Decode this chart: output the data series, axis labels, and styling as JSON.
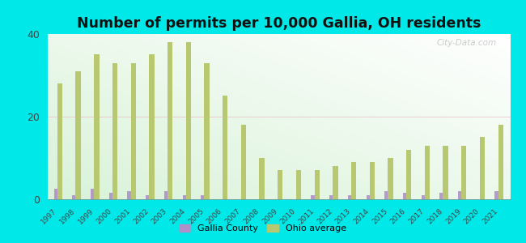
{
  "years": [
    1997,
    1998,
    1999,
    2000,
    2001,
    2002,
    2003,
    2004,
    2005,
    2006,
    2007,
    2008,
    2009,
    2010,
    2011,
    2012,
    2013,
    2014,
    2015,
    2016,
    2017,
    2018,
    2019,
    2020,
    2021
  ],
  "ohio_avg": [
    28,
    31,
    35,
    33,
    33,
    35,
    38,
    38,
    33,
    25,
    18,
    10,
    7,
    7,
    7,
    8,
    9,
    9,
    10,
    12,
    13,
    13,
    13,
    15,
    18
  ],
  "gallia": [
    2.5,
    1,
    2.5,
    1.5,
    2,
    1,
    2,
    1,
    1,
    0,
    0,
    0,
    0,
    0,
    1,
    1,
    1,
    1,
    2,
    1.5,
    1,
    1.5,
    2,
    0,
    2
  ],
  "ohio_color": "#b8c870",
  "gallia_color": "#b090c8",
  "title": "Number of permits per 10,000 Gallia, OH residents",
  "title_fontsize": 12.5,
  "ylim": [
    0,
    40
  ],
  "yticks": [
    0,
    20,
    40
  ],
  "bg_outer": "#00e8e8",
  "watermark": "City-Data.com",
  "legend_gallia": "Gallia County",
  "legend_ohio": "Ohio average",
  "bar_width": 0.28,
  "gallia_bar_width": 0.18
}
